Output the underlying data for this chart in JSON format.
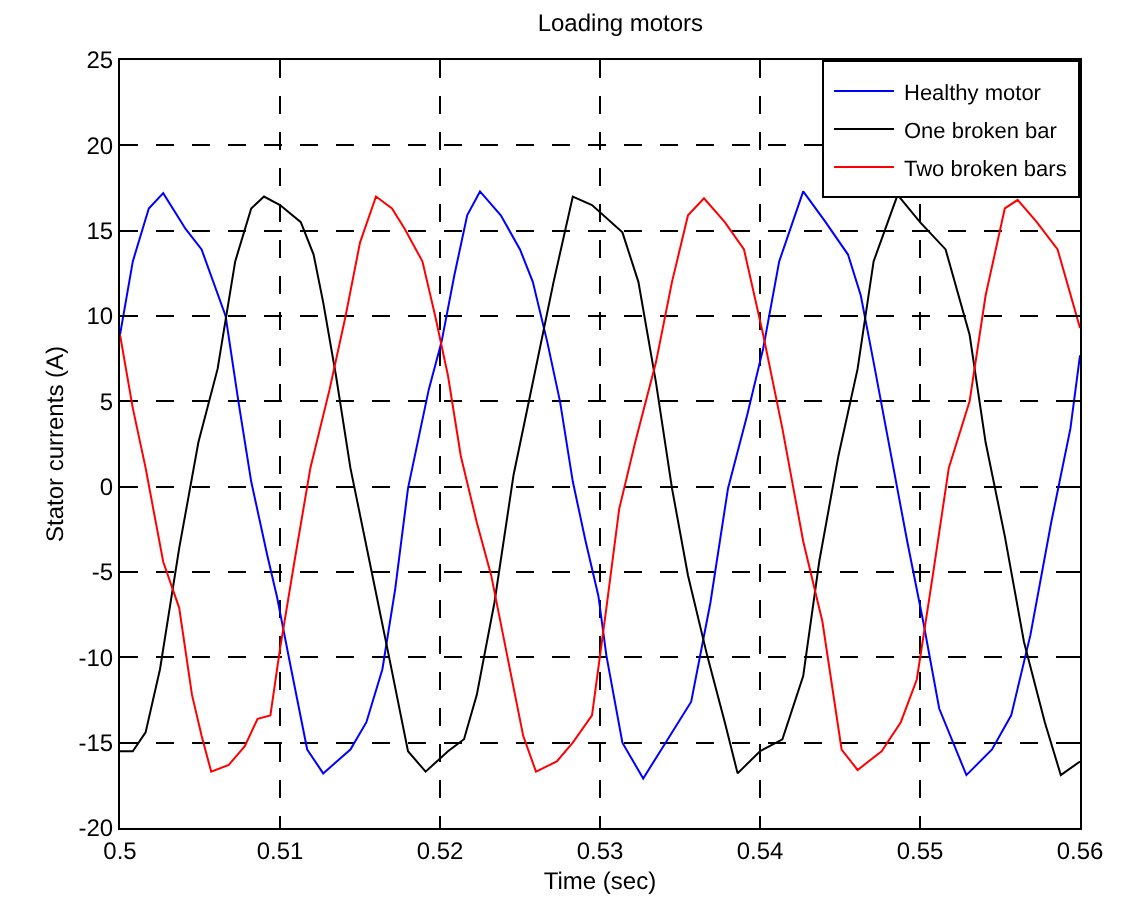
{
  "chart_data": {
    "type": "line",
    "title": "Loading motors",
    "xlabel": "Time (sec)",
    "ylabel": "Stator currents (A)",
    "xlim": [
      0.5,
      0.56
    ],
    "xticks": [
      0.5,
      0.51,
      0.52,
      0.53,
      0.54,
      0.55,
      0.56
    ],
    "ylim": [
      -20,
      25
    ],
    "yticks": [
      -20,
      -15,
      -10,
      -5,
      0,
      5,
      10,
      15,
      20,
      25
    ],
    "grid": true,
    "legend": "top right",
    "marker": "none",
    "line_style": "solid",
    "series": [
      {
        "name": "Healthy motor",
        "color": "#0000ff",
        "x": [
          0.5,
          0.5008,
          0.5018,
          0.5027,
          0.5041,
          0.5051,
          0.5066,
          0.5074,
          0.5082,
          0.5092,
          0.5098,
          0.5107,
          0.5117,
          0.5127,
          0.5144,
          0.5154,
          0.5164,
          0.5172,
          0.518,
          0.5193,
          0.5201,
          0.5209,
          0.5217,
          0.5225,
          0.5238,
          0.525,
          0.5258,
          0.5267,
          0.5275,
          0.5283,
          0.5291,
          0.5299,
          0.5304,
          0.5314,
          0.5327,
          0.5341,
          0.5357,
          0.5369,
          0.538,
          0.5392,
          0.5402,
          0.5412,
          0.5427,
          0.5441,
          0.5455,
          0.5463,
          0.5471,
          0.5482,
          0.5492,
          0.5502,
          0.5512,
          0.5529,
          0.5545,
          0.5557,
          0.5569,
          0.5582,
          0.5594,
          0.56
        ],
        "values": [
          8.9,
          13.2,
          16.3,
          17.2,
          15.1,
          13.9,
          10,
          5,
          0.3,
          -4,
          -6.4,
          -10.7,
          -15.4,
          -16.8,
          -15.4,
          -13.8,
          -10.7,
          -6,
          -0.1,
          5.7,
          8.5,
          12.4,
          15.9,
          17.3,
          15.9,
          13.9,
          12,
          8.5,
          5,
          0.3,
          -3.2,
          -6.4,
          -9.9,
          -15,
          -17.1,
          -15,
          -12.6,
          -6.8,
          -0.1,
          4.2,
          8.1,
          13.2,
          17.3,
          15.5,
          13.6,
          11.2,
          7.3,
          1.8,
          -3.2,
          -7.9,
          -13,
          -16.9,
          -15.4,
          -13.4,
          -8.7,
          -2.1,
          3.4,
          7.7
        ]
      },
      {
        "name": "One broken bar",
        "color": "#000000",
        "x": [
          0.5,
          0.5008,
          0.5016,
          0.5025,
          0.5037,
          0.5049,
          0.5061,
          0.5072,
          0.5082,
          0.509,
          0.51,
          0.5113,
          0.5121,
          0.5127,
          0.5135,
          0.5144,
          0.5156,
          0.5168,
          0.518,
          0.5191,
          0.5205,
          0.5215,
          0.5223,
          0.5234,
          0.5246,
          0.5258,
          0.5271,
          0.5283,
          0.5295,
          0.5314,
          0.5324,
          0.5335,
          0.5345,
          0.5355,
          0.5367,
          0.5378,
          0.5386,
          0.54,
          0.5414,
          0.5427,
          0.5437,
          0.5449,
          0.5461,
          0.5471,
          0.5486,
          0.55,
          0.5516,
          0.5531,
          0.5541,
          0.5553,
          0.5565,
          0.5578,
          0.5588,
          0.56
        ],
        "values": [
          -15.5,
          -15.5,
          -14.4,
          -10.7,
          -3.6,
          2.6,
          6.9,
          13.2,
          16.3,
          17,
          16.5,
          15.5,
          13.6,
          10.8,
          6.5,
          1.1,
          -4.4,
          -9.9,
          -15.5,
          -16.7,
          -15.5,
          -14.8,
          -12.2,
          -6.8,
          0.7,
          6.1,
          12,
          17,
          16.5,
          14.9,
          12,
          6.1,
          -0.1,
          -5.2,
          -9.9,
          -13.8,
          -16.8,
          -15.5,
          -14.8,
          -11.1,
          -4.4,
          1.8,
          6.9,
          13.2,
          17.1,
          15.5,
          13.9,
          8.9,
          2.6,
          -2.9,
          -9.1,
          -13.8,
          -16.9,
          -16.1
        ]
      },
      {
        "name": "Two broken bars",
        "color": "#ff0000",
        "x": [
          0.5,
          0.5008,
          0.5016,
          0.5027,
          0.5037,
          0.5045,
          0.5051,
          0.5057,
          0.5068,
          0.5078,
          0.5086,
          0.5094,
          0.51,
          0.5109,
          0.5119,
          0.5131,
          0.5141,
          0.515,
          0.516,
          0.517,
          0.5178,
          0.5189,
          0.5197,
          0.5205,
          0.5213,
          0.5223,
          0.5232,
          0.5242,
          0.5252,
          0.526,
          0.5273,
          0.5283,
          0.5295,
          0.5304,
          0.5312,
          0.5322,
          0.5335,
          0.5345,
          0.5355,
          0.5365,
          0.5378,
          0.539,
          0.5402,
          0.5414,
          0.5427,
          0.5439,
          0.5451,
          0.5461,
          0.5476,
          0.5488,
          0.5498,
          0.5508,
          0.5518,
          0.5531,
          0.5541,
          0.5553,
          0.5561,
          0.5573,
          0.5586,
          0.56
        ],
        "values": [
          8.9,
          4.6,
          1.1,
          -4.4,
          -7.1,
          -12.2,
          -14.6,
          -16.7,
          -16.3,
          -15.2,
          -13.6,
          -13.4,
          -9.5,
          -4.4,
          1.1,
          5.7,
          10,
          14.3,
          17,
          16.3,
          15.1,
          13.2,
          10,
          6.5,
          1.8,
          -2.1,
          -5.2,
          -9.9,
          -14.6,
          -16.7,
          -16.1,
          -15,
          -13.4,
          -7.1,
          -1.3,
          2.6,
          7.3,
          12,
          15.9,
          16.9,
          15.5,
          13.9,
          8.9,
          3.4,
          -3.2,
          -7.9,
          -15.4,
          -16.6,
          -15.5,
          -13.8,
          -11.3,
          -5.2,
          1.1,
          5,
          11.2,
          16.3,
          16.8,
          15.5,
          13.9,
          9.3
        ]
      }
    ]
  }
}
